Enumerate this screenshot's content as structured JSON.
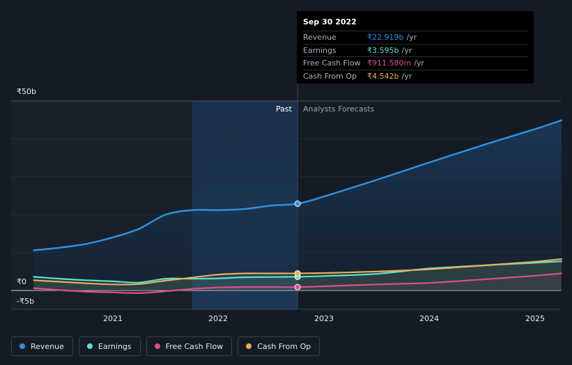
{
  "tooltip": {
    "date": "Sep 30 2022",
    "rows": [
      {
        "label": "Revenue",
        "value": "₹22.919b",
        "unit": "/yr",
        "color": "#2f8fe0"
      },
      {
        "label": "Earnings",
        "value": "₹3.595b",
        "unit": "/yr",
        "color": "#5ce0cb"
      },
      {
        "label": "Free Cash Flow",
        "value": "₹911.580m",
        "unit": "/yr",
        "color": "#d8508c"
      },
      {
        "label": "Cash From Op",
        "value": "₹4.542b",
        "unit": "/yr",
        "color": "#e9ad5a"
      }
    ]
  },
  "regions": {
    "past": "Past",
    "forecast": "Analysts Forecasts"
  },
  "legend": [
    {
      "label": "Revenue",
      "color": "#2f8fe0"
    },
    {
      "label": "Earnings",
      "color": "#5ce0cb"
    },
    {
      "label": "Free Cash Flow",
      "color": "#d8508c"
    },
    {
      "label": "Cash From Op",
      "color": "#e9ad5a"
    }
  ],
  "chart_data": {
    "type": "line",
    "title": "",
    "xlabel": "",
    "ylabel": "",
    "currency_symbol": "₹",
    "y_tick_labels": [
      "₹50b",
      "₹0",
      "-₹5b"
    ],
    "x_tick_labels": [
      "2021",
      "2022",
      "2023",
      "2024",
      "2025"
    ],
    "ylim": [
      -5,
      50
    ],
    "xlim": [
      2020.2,
      2025.25
    ],
    "past_end": 2022.75,
    "highlight_start": 2021.75,
    "grid": true,
    "legend_position": "bottom",
    "series": [
      {
        "name": "Revenue",
        "color": "#2f8fe0",
        "points": [
          [
            2020.25,
            10.6
          ],
          [
            2020.5,
            11.3
          ],
          [
            2020.75,
            12.3
          ],
          [
            2021.0,
            14.0
          ],
          [
            2021.25,
            16.3
          ],
          [
            2021.5,
            20.0
          ],
          [
            2021.75,
            21.2
          ],
          [
            2022.0,
            21.2
          ],
          [
            2022.25,
            21.5
          ],
          [
            2022.5,
            22.4
          ],
          [
            2022.75,
            22.9
          ],
          [
            2023.0,
            24.8
          ],
          [
            2023.5,
            29.2
          ],
          [
            2024.0,
            33.8
          ],
          [
            2024.5,
            38.3
          ],
          [
            2025.0,
            42.6
          ],
          [
            2025.25,
            44.9
          ]
        ]
      },
      {
        "name": "Earnings",
        "color": "#5ce0cb",
        "points": [
          [
            2020.25,
            3.6
          ],
          [
            2020.5,
            3.1
          ],
          [
            2020.75,
            2.7
          ],
          [
            2021.0,
            2.4
          ],
          [
            2021.25,
            2.1
          ],
          [
            2021.5,
            3.1
          ],
          [
            2021.75,
            3.1
          ],
          [
            2022.0,
            3.2
          ],
          [
            2022.25,
            3.5
          ],
          [
            2022.5,
            3.55
          ],
          [
            2022.75,
            3.6
          ],
          [
            2023.0,
            3.8
          ],
          [
            2023.5,
            4.4
          ],
          [
            2024.0,
            5.8
          ],
          [
            2024.5,
            6.6
          ],
          [
            2025.0,
            7.3
          ],
          [
            2025.25,
            7.7
          ]
        ]
      },
      {
        "name": "Free Cash Flow",
        "color": "#d8508c",
        "points": [
          [
            2020.25,
            0.6
          ],
          [
            2020.5,
            0.1
          ],
          [
            2020.75,
            -0.3
          ],
          [
            2021.0,
            -0.5
          ],
          [
            2021.25,
            -0.7
          ],
          [
            2021.5,
            -0.2
          ],
          [
            2021.75,
            0.4
          ],
          [
            2022.0,
            0.8
          ],
          [
            2022.25,
            0.9
          ],
          [
            2022.5,
            0.9
          ],
          [
            2022.75,
            0.9
          ],
          [
            2023.0,
            1.1
          ],
          [
            2023.5,
            1.6
          ],
          [
            2024.0,
            2.0
          ],
          [
            2024.5,
            2.9
          ],
          [
            2025.0,
            3.9
          ],
          [
            2025.25,
            4.5
          ]
        ]
      },
      {
        "name": "Cash From Op",
        "color": "#e9ad5a",
        "points": [
          [
            2020.25,
            2.7
          ],
          [
            2020.5,
            2.3
          ],
          [
            2020.75,
            1.9
          ],
          [
            2021.0,
            1.6
          ],
          [
            2021.25,
            1.7
          ],
          [
            2021.5,
            2.6
          ],
          [
            2021.75,
            3.4
          ],
          [
            2022.0,
            4.2
          ],
          [
            2022.25,
            4.5
          ],
          [
            2022.5,
            4.5
          ],
          [
            2022.75,
            4.5
          ],
          [
            2023.0,
            4.6
          ],
          [
            2023.5,
            5.0
          ],
          [
            2024.0,
            5.6
          ],
          [
            2024.5,
            6.6
          ],
          [
            2025.0,
            7.6
          ],
          [
            2025.25,
            8.3
          ]
        ]
      }
    ]
  }
}
